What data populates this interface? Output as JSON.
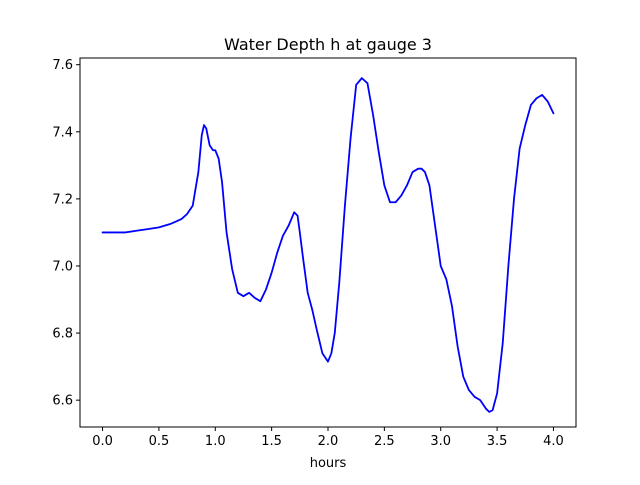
{
  "chart_data": {
    "type": "line",
    "title": "Water Depth h at gauge 3",
    "xlabel": "hours",
    "ylabel": "",
    "xlim": [
      -0.2,
      4.2
    ],
    "ylim": [
      6.52,
      7.62
    ],
    "xticks": [
      0.0,
      0.5,
      1.0,
      1.5,
      2.0,
      2.5,
      3.0,
      3.5,
      4.0
    ],
    "xtick_labels": [
      "0.0",
      "0.5",
      "1.0",
      "1.5",
      "2.0",
      "2.5",
      "3.0",
      "3.5",
      "4.0"
    ],
    "yticks": [
      6.6,
      6.8,
      7.0,
      7.2,
      7.4,
      7.6
    ],
    "ytick_labels": [
      "6.6",
      "6.8",
      "7.0",
      "7.2",
      "7.4",
      "7.6"
    ],
    "grid": false,
    "series": [
      {
        "color": "#0000ff",
        "x": [
          0.0,
          0.1,
          0.2,
          0.3,
          0.4,
          0.5,
          0.6,
          0.7,
          0.75,
          0.8,
          0.85,
          0.88,
          0.9,
          0.92,
          0.95,
          0.98,
          1.0,
          1.03,
          1.06,
          1.1,
          1.15,
          1.2,
          1.25,
          1.3,
          1.35,
          1.4,
          1.45,
          1.5,
          1.55,
          1.6,
          1.65,
          1.7,
          1.73,
          1.75,
          1.78,
          1.82,
          1.86,
          1.9,
          1.95,
          2.0,
          2.03,
          2.06,
          2.1,
          2.15,
          2.2,
          2.25,
          2.3,
          2.35,
          2.4,
          2.45,
          2.5,
          2.55,
          2.6,
          2.65,
          2.7,
          2.75,
          2.8,
          2.83,
          2.86,
          2.9,
          2.95,
          3.0,
          3.05,
          3.1,
          3.15,
          3.2,
          3.25,
          3.3,
          3.35,
          3.4,
          3.43,
          3.46,
          3.5,
          3.55,
          3.6,
          3.65,
          3.7,
          3.75,
          3.8,
          3.85,
          3.9,
          3.95,
          4.0
        ],
        "y": [
          7.1,
          7.1,
          7.1,
          7.105,
          7.11,
          7.115,
          7.125,
          7.14,
          7.155,
          7.18,
          7.28,
          7.39,
          7.42,
          7.41,
          7.36,
          7.345,
          7.345,
          7.32,
          7.25,
          7.1,
          6.99,
          6.92,
          6.91,
          6.92,
          6.905,
          6.895,
          6.93,
          6.98,
          7.04,
          7.09,
          7.12,
          7.16,
          7.15,
          7.1,
          7.02,
          6.92,
          6.87,
          6.81,
          6.74,
          6.715,
          6.74,
          6.8,
          6.95,
          7.18,
          7.38,
          7.54,
          7.56,
          7.545,
          7.45,
          7.34,
          7.24,
          7.19,
          7.19,
          7.21,
          7.24,
          7.28,
          7.29,
          7.29,
          7.28,
          7.24,
          7.12,
          7.0,
          6.96,
          6.88,
          6.76,
          6.67,
          6.63,
          6.61,
          6.6,
          6.575,
          6.565,
          6.57,
          6.62,
          6.77,
          7.0,
          7.2,
          7.35,
          7.42,
          7.48,
          7.5,
          7.51,
          7.49,
          7.455
        ]
      }
    ]
  }
}
